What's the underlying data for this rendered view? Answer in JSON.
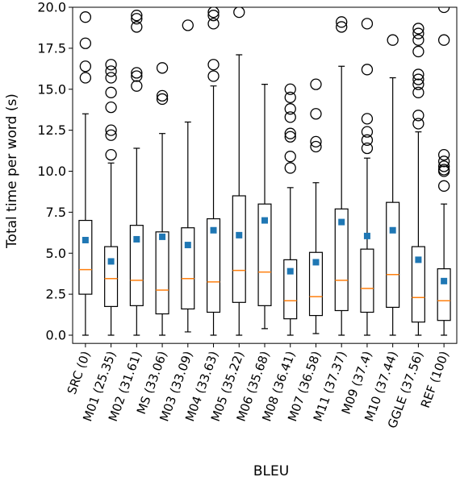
{
  "chart_data": {
    "type": "box",
    "xlabel": "BLEU",
    "ylabel": "Total time per word (s)",
    "ylim": [
      -0.5,
      20.0
    ],
    "yticks": [
      "0.0",
      "2.5",
      "5.0",
      "7.5",
      "10.0",
      "12.5",
      "15.0",
      "17.5",
      "20.0"
    ],
    "categories": [
      "SRC (0)",
      "M01 (25.35)",
      "M02 (31.61)",
      "MS (33.06)",
      "M03 (33.09)",
      "M04 (33.63)",
      "M05 (35.22)",
      "M06 (35.68)",
      "M08 (36.41)",
      "M07 (36.58)",
      "M11 (37.37)",
      "M09 (37.4)",
      "M10 (37.44)",
      "GGLE (37.56)",
      "REF (100)"
    ],
    "boxes": [
      {
        "min": 0.0,
        "q1": 2.5,
        "median": 4.0,
        "q3": 7.0,
        "max": 13.5,
        "mean": 5.8,
        "outliers": [
          15.7,
          16.4,
          17.8,
          19.4
        ]
      },
      {
        "min": 0.0,
        "q1": 1.75,
        "median": 3.45,
        "q3": 5.4,
        "max": 10.5,
        "mean": 4.5,
        "outliers": [
          11.0,
          12.2,
          12.5,
          13.9,
          14.8,
          15.7,
          16.1,
          16.5
        ]
      },
      {
        "min": 0.0,
        "q1": 1.8,
        "median": 3.35,
        "q3": 6.7,
        "max": 11.4,
        "mean": 5.85,
        "outliers": [
          15.2,
          15.8,
          16.0,
          18.8,
          19.3,
          19.5
        ]
      },
      {
        "min": 0.0,
        "q1": 1.3,
        "median": 2.75,
        "q3": 6.3,
        "max": 12.3,
        "mean": 6.0,
        "outliers": [
          14.4,
          14.6,
          16.3
        ]
      },
      {
        "min": 0.2,
        "q1": 1.6,
        "median": 3.45,
        "q3": 6.55,
        "max": 13.0,
        "mean": 5.5,
        "outliers": [
          18.9
        ]
      },
      {
        "min": 0.0,
        "q1": 1.4,
        "median": 3.25,
        "q3": 7.1,
        "max": 15.2,
        "mean": 6.4,
        "outliers": [
          15.8,
          16.5,
          19.0,
          19.5,
          19.7
        ]
      },
      {
        "min": 0.0,
        "q1": 2.0,
        "median": 3.95,
        "q3": 8.5,
        "max": 17.1,
        "mean": 6.1,
        "outliers": [
          19.7
        ]
      },
      {
        "min": 0.4,
        "q1": 1.8,
        "median": 3.85,
        "q3": 8.0,
        "max": 15.3,
        "mean": 7.0,
        "outliers": []
      },
      {
        "min": 0.0,
        "q1": 1.0,
        "median": 2.1,
        "q3": 4.6,
        "max": 9.0,
        "mean": 3.9,
        "outliers": [
          10.2,
          10.9,
          12.1,
          12.3,
          13.3,
          13.8,
          14.5,
          15.0
        ]
      },
      {
        "min": 0.1,
        "q1": 1.2,
        "median": 2.35,
        "q3": 5.05,
        "max": 9.3,
        "mean": 4.45,
        "outliers": [
          11.5,
          11.8,
          13.5,
          15.3
        ]
      },
      {
        "min": 0.0,
        "q1": 1.5,
        "median": 3.35,
        "q3": 7.7,
        "max": 16.4,
        "mean": 6.9,
        "outliers": [
          18.8,
          19.1
        ]
      },
      {
        "min": 0.0,
        "q1": 1.4,
        "median": 2.85,
        "q3": 5.25,
        "max": 10.8,
        "mean": 6.05,
        "outliers": [
          11.4,
          11.9,
          12.4,
          13.2,
          16.2,
          19.0
        ]
      },
      {
        "min": 0.0,
        "q1": 1.7,
        "median": 3.7,
        "q3": 8.1,
        "max": 15.7,
        "mean": 6.4,
        "outliers": [
          18.0
        ]
      },
      {
        "min": 0.0,
        "q1": 0.8,
        "median": 2.3,
        "q3": 5.4,
        "max": 12.4,
        "mean": 4.6,
        "outliers": [
          12.9,
          13.4,
          14.8,
          15.3,
          15.6,
          15.9,
          17.3,
          18.0,
          18.4,
          18.7
        ]
      },
      {
        "min": 0.0,
        "q1": 0.9,
        "median": 2.1,
        "q3": 4.05,
        "max": 8.0,
        "mean": 3.3,
        "outliers": [
          9.1,
          10.0,
          10.1,
          10.3,
          10.6,
          11.0,
          18.0,
          20.0
        ]
      }
    ],
    "colors": {
      "box": "#000000",
      "median": "#ff7f0e",
      "mean": "#1f77b4",
      "outlier": "#000000"
    },
    "grid": false,
    "legend": "none"
  }
}
